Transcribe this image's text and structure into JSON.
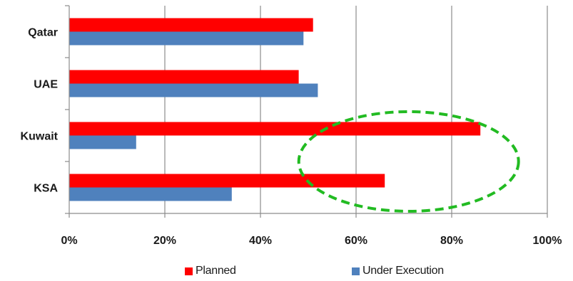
{
  "chart_data": {
    "type": "bar",
    "orientation": "horizontal",
    "categories": [
      "Qatar",
      "UAE",
      "Kuwait",
      "KSA"
    ],
    "series": [
      {
        "name": "Planned",
        "color": "#ff0000",
        "values": [
          51,
          48,
          86,
          66
        ]
      },
      {
        "name": "Under Execution",
        "color": "#4f81bd",
        "values": [
          49,
          52,
          14,
          34
        ]
      }
    ],
    "xticks": [
      "0%",
      "20%",
      "40%",
      "60%",
      "80%",
      "100%"
    ],
    "xlim": [
      0,
      100
    ],
    "grid": true,
    "legend_position": "bottom",
    "annotation": {
      "shape": "dashed-ellipse",
      "color": "#22bb22",
      "x_center": 71,
      "category_between": [
        "Kuwait",
        "KSA"
      ]
    }
  },
  "legend": {
    "planned_label": "Planned",
    "under_execution_label": "Under Execution"
  }
}
